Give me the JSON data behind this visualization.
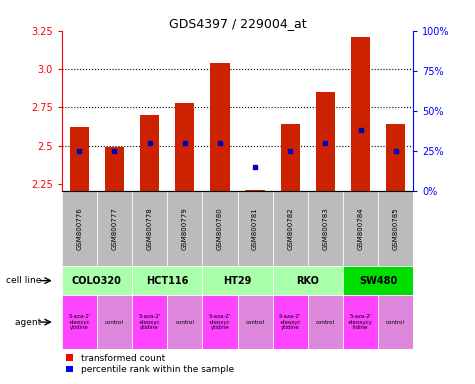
{
  "title": "GDS4397 / 229004_at",
  "samples": [
    "GSM800776",
    "GSM800777",
    "GSM800778",
    "GSM800779",
    "GSM800780",
    "GSM800781",
    "GSM800782",
    "GSM800783",
    "GSM800784",
    "GSM800785"
  ],
  "transformed_count": [
    2.62,
    2.49,
    2.7,
    2.78,
    3.04,
    2.21,
    2.64,
    2.85,
    3.21,
    2.64
  ],
  "percentile_rank": [
    25,
    25,
    30,
    30,
    30,
    15,
    25,
    30,
    38,
    25
  ],
  "ylim": [
    2.2,
    3.25
  ],
  "ylim_right": [
    0,
    100
  ],
  "yticks_left": [
    2.25,
    2.5,
    2.75,
    3.0,
    3.25
  ],
  "yticks_right": [
    0,
    25,
    50,
    75,
    100
  ],
  "ytick_right_labels": [
    "0%",
    "25%",
    "50%",
    "75%",
    "100%"
  ],
  "cell_lines": [
    {
      "name": "COLO320",
      "start": 0,
      "end": 2,
      "color": "#aaffaa"
    },
    {
      "name": "HCT116",
      "start": 2,
      "end": 4,
      "color": "#aaffaa"
    },
    {
      "name": "HT29",
      "start": 4,
      "end": 6,
      "color": "#aaffaa"
    },
    {
      "name": "RKO",
      "start": 6,
      "end": 8,
      "color": "#aaffaa"
    },
    {
      "name": "SW480",
      "start": 8,
      "end": 10,
      "color": "#00dd00"
    }
  ],
  "agents": [
    {
      "name": "5-aza-2'\n-deoxyc\nytidine",
      "color": "#ff44ff"
    },
    {
      "name": "control",
      "color": "#dd88dd"
    },
    {
      "name": "5-aza-2'\n-deoxyc\nytidine",
      "color": "#ff44ff"
    },
    {
      "name": "control",
      "color": "#dd88dd"
    },
    {
      "name": "5-aza-2'\n-deoxyc\nytidine",
      "color": "#ff44ff"
    },
    {
      "name": "control",
      "color": "#dd88dd"
    },
    {
      "name": "5-aza-2'\n-deoxyc\nytidine",
      "color": "#ff44ff"
    },
    {
      "name": "control",
      "color": "#dd88dd"
    },
    {
      "name": "5-aza-2'\n-deoxycy\ntidine",
      "color": "#ff44ff"
    },
    {
      "name": "control",
      "color": "#dd88dd"
    }
  ],
  "bar_color": "#cc2200",
  "dot_color": "#0000bb",
  "bar_width": 0.55,
  "grid_yticks": [
    2.5,
    2.75,
    3.0
  ],
  "sample_bg_color": "#bbbbbb",
  "legend_red": "transformed count",
  "legend_blue": "percentile rank within the sample"
}
